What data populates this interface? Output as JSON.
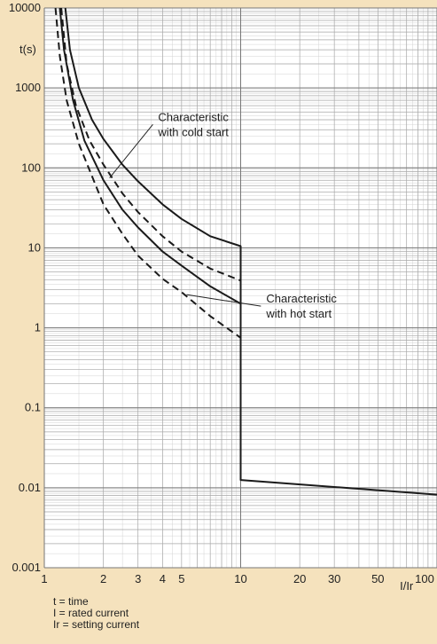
{
  "chart_data": {
    "type": "line",
    "title": "",
    "xlabel": "I/Ir",
    "ylabel": "t(s)",
    "x_scale": "log",
    "y_scale": "log",
    "xlim": [
      1,
      100
    ],
    "ylim": [
      0.001,
      10000
    ],
    "grid": true,
    "x_ticks": [
      {
        "value": 1,
        "label": "1"
      },
      {
        "value": 2,
        "label": "2"
      },
      {
        "value": 3,
        "label": "3"
      },
      {
        "value": 4,
        "label": "4"
      },
      {
        "value": 5,
        "label": "5"
      },
      {
        "value": 10,
        "label": "10"
      },
      {
        "value": 20,
        "label": "20"
      },
      {
        "value": 30,
        "label": "30"
      },
      {
        "value": 50,
        "label": "50"
      },
      {
        "value": 100,
        "label": "100"
      }
    ],
    "y_ticks": [
      {
        "value": 10000,
        "label": "10000"
      },
      {
        "value": 1000,
        "label": "1000"
      },
      {
        "value": 100,
        "label": "100"
      },
      {
        "value": 10,
        "label": "10"
      },
      {
        "value": 1,
        "label": "1"
      },
      {
        "value": 0.1,
        "label": "0.1"
      },
      {
        "value": 0.01,
        "label": "0.01"
      },
      {
        "value": 0.001,
        "label": "0.001"
      }
    ],
    "series": [
      {
        "style": "solid",
        "x": [
          1.28,
          1.35,
          1.5,
          1.75,
          2,
          2.5,
          3,
          4,
          5,
          7,
          10,
          10,
          100
        ],
        "y": [
          10000,
          3000,
          1000,
          400,
          230,
          110,
          68,
          35,
          23,
          14,
          10.5,
          0.0125,
          0.0082
        ]
      },
      {
        "style": "dashed",
        "x": [
          1.22,
          1.3,
          1.45,
          1.7,
          2,
          2.5,
          3,
          4,
          5,
          7,
          10
        ],
        "y": [
          10000,
          2000,
          600,
          220,
          110,
          48,
          28,
          14,
          9,
          5.5,
          3.9
        ]
      },
      {
        "style": "solid",
        "x": [
          1.2,
          1.26,
          1.4,
          1.6,
          2,
          2.5,
          3,
          4,
          5,
          7,
          10
        ],
        "y": [
          10000,
          3000,
          700,
          220,
          70,
          30,
          18,
          9,
          6,
          3.3,
          2.0
        ]
      },
      {
        "style": "dashed",
        "x": [
          1.14,
          1.2,
          1.3,
          1.5,
          2,
          2.5,
          3,
          4,
          5,
          7,
          10
        ],
        "y": [
          10000,
          2500,
          700,
          200,
          35,
          15,
          8,
          4.1,
          2.8,
          1.4,
          0.75
        ]
      }
    ],
    "annotations": [
      {
        "lines": [
          "Characteristic",
          "with cold start"
        ],
        "text_x": 3.8,
        "text_y": 300,
        "point_x": 2.15,
        "point_y": 75
      },
      {
        "lines": [
          "Characteristic",
          "with hot start"
        ],
        "text_x": 13.5,
        "text_y": 1.6,
        "point_x": 5.3,
        "point_y": 2.6
      }
    ]
  },
  "legend_notes": [
    "t = time",
    "I = rated current",
    "Ir = setting current"
  ]
}
